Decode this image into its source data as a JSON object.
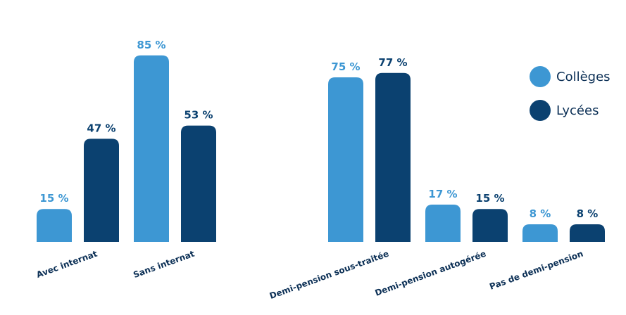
{
  "chart_data": [
    {
      "type": "bar",
      "categories": [
        "Avec internat",
        "Sans internat"
      ],
      "series": [
        {
          "name": "Collèges",
          "values": [
            15,
            85
          ],
          "labels": [
            "15 %",
            "85 %"
          ],
          "color": "#3d97d3"
        },
        {
          "name": "Lycées",
          "values": [
            47,
            53
          ],
          "labels": [
            "47 %",
            "53 %"
          ],
          "color": "#0b4170"
        }
      ],
      "ylim": [
        0,
        100
      ],
      "grid": false
    },
    {
      "type": "bar",
      "categories": [
        "Demi-pension sous-traitée",
        "Demi-pension autogérée",
        "Pas de demi-pension"
      ],
      "series": [
        {
          "name": "Collèges",
          "values": [
            75,
            17,
            8
          ],
          "labels": [
            "75 %",
            "17 %",
            "8 %"
          ],
          "color": "#3d97d3"
        },
        {
          "name": "Lycées",
          "values": [
            77,
            15,
            8
          ],
          "labels": [
            "77 %",
            "15 %",
            "8 %"
          ],
          "color": "#0b4170"
        }
      ],
      "ylim": [
        0,
        100
      ],
      "grid": false
    }
  ],
  "legend": {
    "placement": "right",
    "items": [
      {
        "label": "Collèges",
        "color": "#3d97d3"
      },
      {
        "label": "Lycées",
        "color": "#0b4170"
      }
    ]
  }
}
